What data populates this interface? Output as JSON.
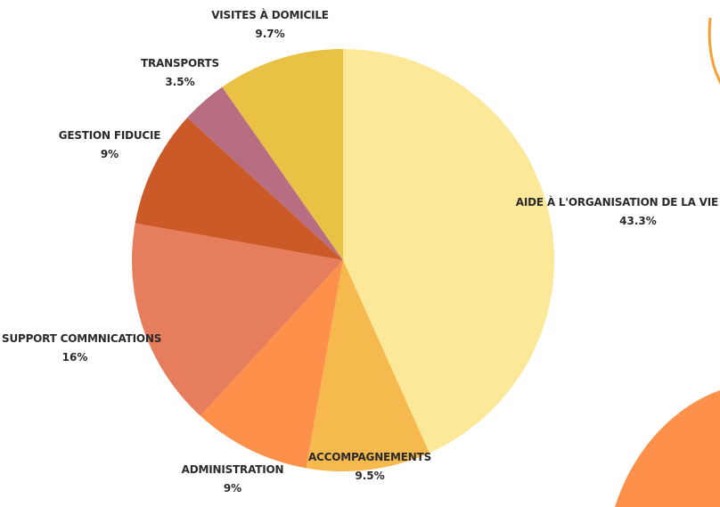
{
  "chart_data": {
    "type": "pie",
    "title": "",
    "slices": [
      {
        "label": "AIDE À L'ORGANISATION DE LA VIE",
        "value": 43.3,
        "value_label": "43.3%",
        "color": "#fce899"
      },
      {
        "label": "ACCOMPAGNEMENTS",
        "value": 9.5,
        "value_label": "9.5%",
        "color": "#f5b94e"
      },
      {
        "label": "ADMINISTRATION",
        "value": 9,
        "value_label": "9%",
        "color": "#fd914b"
      },
      {
        "label": "SUPPORT COMMNICATIONS",
        "value": 16,
        "value_label": "16%",
        "color": "#e67e5e"
      },
      {
        "label": "GESTION FIDUCIE",
        "value": 9,
        "value_label": "9%",
        "color": "#cc5a28"
      },
      {
        "label": "TRANSPORTS",
        "value": 3.5,
        "value_label": "3.5%",
        "color": "#b86e82"
      },
      {
        "label": "VISITES À DOMICILE",
        "value": 9.7,
        "value_label": "9.7%",
        "color": "#e9c144"
      }
    ],
    "start_angle": "12 o'clock",
    "direction": "clockwise",
    "legend": "none"
  },
  "decor": {
    "ring_color": "#f7a033",
    "blob_color": "#fd914b"
  }
}
